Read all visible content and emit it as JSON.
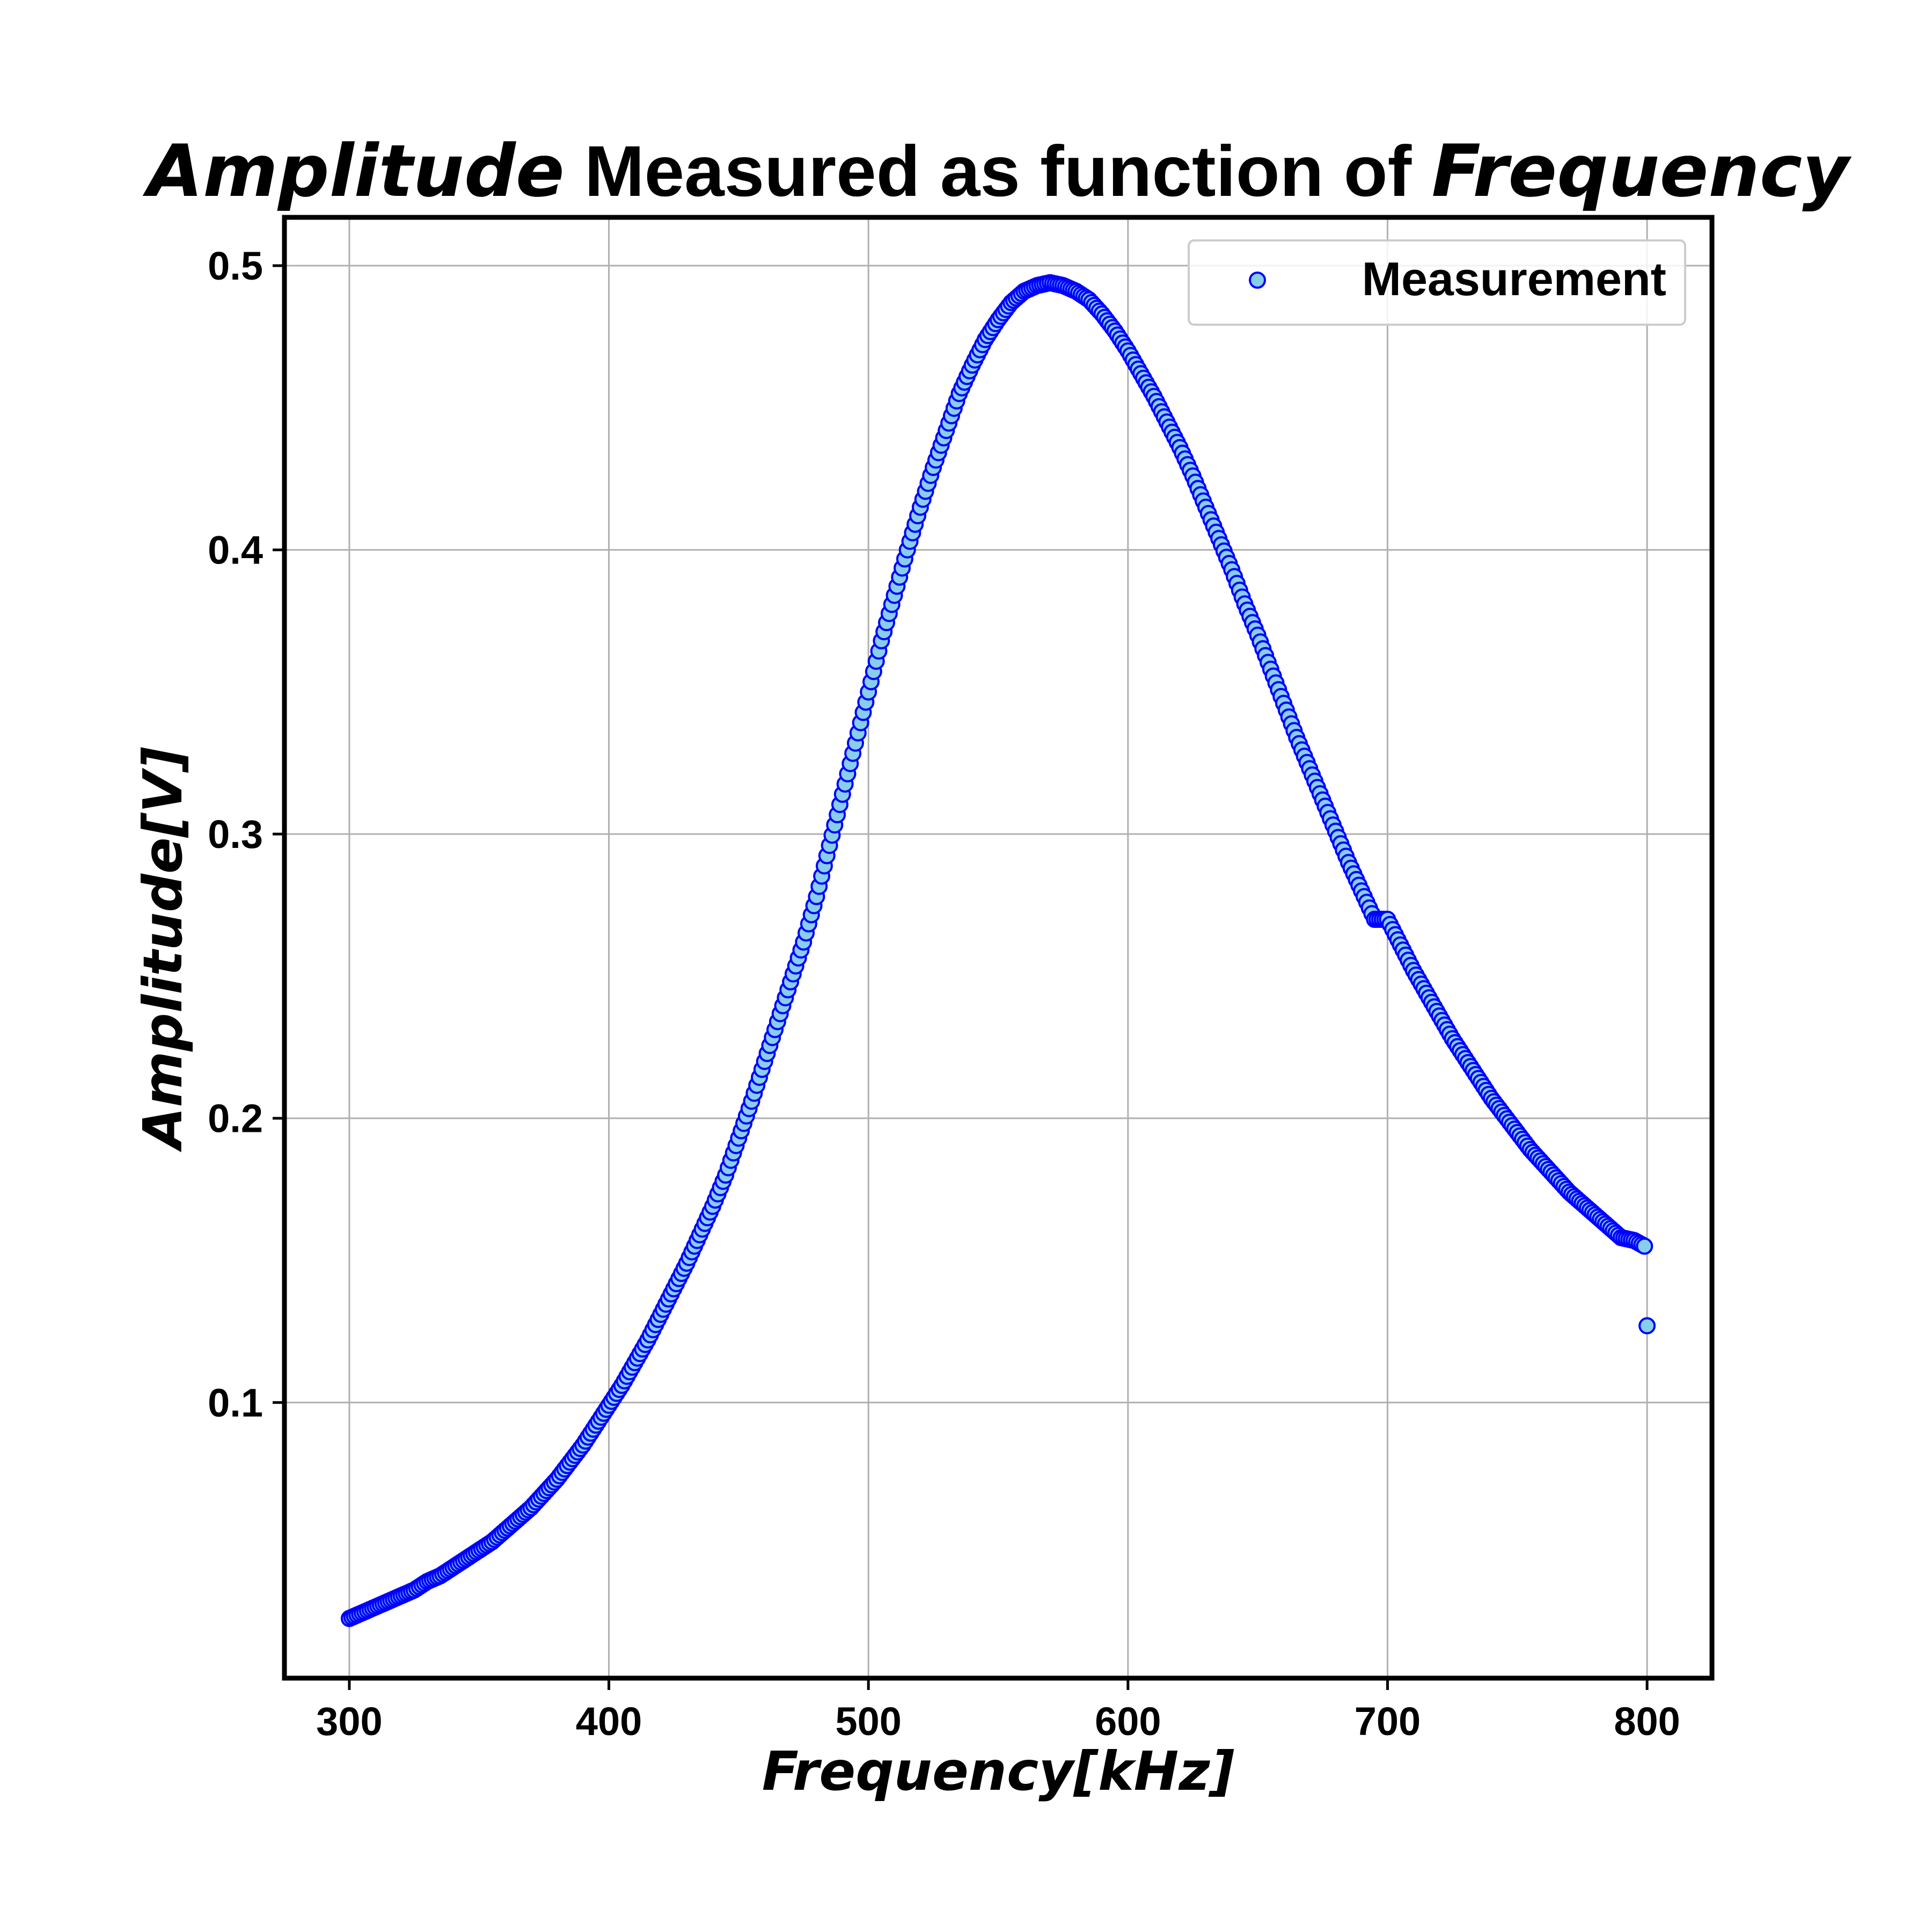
{
  "chart_data": {
    "type": "scatter",
    "title_parts": [
      {
        "text": "Amplitude",
        "italic": true
      },
      {
        "text": " Measured as function of ",
        "italic": false
      },
      {
        "text": "Frequency",
        "italic": true
      }
    ],
    "xlabel": "Frequency[kHz]",
    "ylabel": "Amplitude[V]",
    "xlim": [
      275,
      825
    ],
    "ylim": [
      0.003,
      0.517
    ],
    "xticks": [
      300,
      400,
      500,
      600,
      700,
      800
    ],
    "yticks": [
      0.1,
      0.2,
      0.3,
      0.4,
      0.5
    ],
    "xtick_labels": [
      "300",
      "400",
      "500",
      "600",
      "700",
      "800"
    ],
    "ytick_labels": [
      "0.1",
      "0.2",
      "0.3",
      "0.4",
      "0.5"
    ],
    "grid": true,
    "legend_position": "top-right",
    "series": [
      {
        "name": "Measurement",
        "marker": "circle",
        "face_color": "#87ceeb",
        "edge_color": "#0000ff",
        "points": [
          [
            300,
            0.024
          ],
          [
            305,
            0.026
          ],
          [
            310,
            0.028
          ],
          [
            315,
            0.03
          ],
          [
            320,
            0.032
          ],
          [
            325,
            0.034
          ],
          [
            330,
            0.037
          ],
          [
            335,
            0.039
          ],
          [
            340,
            0.042
          ],
          [
            345,
            0.045
          ],
          [
            350,
            0.048
          ],
          [
            355,
            0.051
          ],
          [
            360,
            0.055
          ],
          [
            365,
            0.059
          ],
          [
            370,
            0.063
          ],
          [
            375,
            0.068
          ],
          [
            380,
            0.073
          ],
          [
            385,
            0.079
          ],
          [
            390,
            0.085
          ],
          [
            395,
            0.092
          ],
          [
            400,
            0.099
          ],
          [
            405,
            0.106
          ],
          [
            410,
            0.114
          ],
          [
            415,
            0.122
          ],
          [
            420,
            0.131
          ],
          [
            425,
            0.14
          ],
          [
            430,
            0.149
          ],
          [
            435,
            0.159
          ],
          [
            440,
            0.169
          ],
          [
            445,
            0.18
          ],
          [
            450,
            0.193
          ],
          [
            455,
            0.206
          ],
          [
            460,
            0.22
          ],
          [
            465,
            0.234
          ],
          [
            470,
            0.248
          ],
          [
            475,
            0.262
          ],
          [
            480,
            0.278
          ],
          [
            485,
            0.296
          ],
          [
            490,
            0.314
          ],
          [
            495,
            0.332
          ],
          [
            500,
            0.35
          ],
          [
            505,
            0.368
          ],
          [
            510,
            0.384
          ],
          [
            515,
            0.4
          ],
          [
            520,
            0.415
          ],
          [
            525,
            0.429
          ],
          [
            530,
            0.442
          ],
          [
            535,
            0.455
          ],
          [
            540,
            0.465
          ],
          [
            545,
            0.474
          ],
          [
            550,
            0.481
          ],
          [
            555,
            0.487
          ],
          [
            560,
            0.491
          ],
          [
            565,
            0.493
          ],
          [
            570,
            0.494
          ],
          [
            575,
            0.493
          ],
          [
            580,
            0.491
          ],
          [
            585,
            0.488
          ],
          [
            590,
            0.483
          ],
          [
            595,
            0.477
          ],
          [
            600,
            0.47
          ],
          [
            605,
            0.462
          ],
          [
            610,
            0.454
          ],
          [
            615,
            0.445
          ],
          [
            620,
            0.436
          ],
          [
            625,
            0.426
          ],
          [
            630,
            0.415
          ],
          [
            635,
            0.404
          ],
          [
            640,
            0.393
          ],
          [
            645,
            0.381
          ],
          [
            650,
            0.37
          ],
          [
            655,
            0.358
          ],
          [
            660,
            0.346
          ],
          [
            665,
            0.334
          ],
          [
            670,
            0.323
          ],
          [
            675,
            0.312
          ],
          [
            680,
            0.301
          ],
          [
            685,
            0.29
          ],
          [
            690,
            0.28
          ],
          [
            695,
            0.27
          ],
          [
            700,
            0.27
          ],
          [
            705,
            0.261
          ],
          [
            710,
            0.252
          ],
          [
            715,
            0.244
          ],
          [
            720,
            0.236
          ],
          [
            725,
            0.228
          ],
          [
            730,
            0.221
          ],
          [
            735,
            0.214
          ],
          [
            740,
            0.207
          ],
          [
            745,
            0.201
          ],
          [
            750,
            0.195
          ],
          [
            755,
            0.189
          ],
          [
            760,
            0.184
          ],
          [
            765,
            0.179
          ],
          [
            770,
            0.174
          ],
          [
            775,
            0.17
          ],
          [
            780,
            0.166
          ],
          [
            785,
            0.162
          ],
          [
            790,
            0.158
          ],
          [
            795,
            0.157
          ],
          [
            799,
            0.155
          ],
          [
            800,
            0.127
          ]
        ]
      }
    ]
  }
}
